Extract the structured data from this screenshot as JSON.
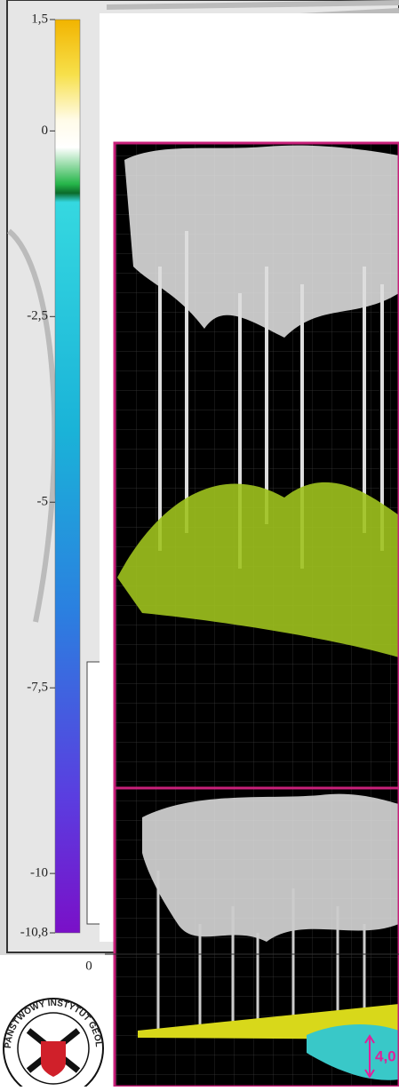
{
  "colorbar": {
    "ticks": [
      {
        "value": 1.5,
        "label": "1,5"
      },
      0,
      {
        "value": -2.5,
        "label": "-2,5"
      },
      -5,
      {
        "value": -7.5,
        "label": "-7,5"
      },
      -10,
      {
        "value": -10.8,
        "label": "-10,8"
      }
    ]
  },
  "axis_label": "0",
  "panel_label": "4,0",
  "logo": {
    "text": "PAŃSTWOWY INSTYTUT GEOL"
  }
}
